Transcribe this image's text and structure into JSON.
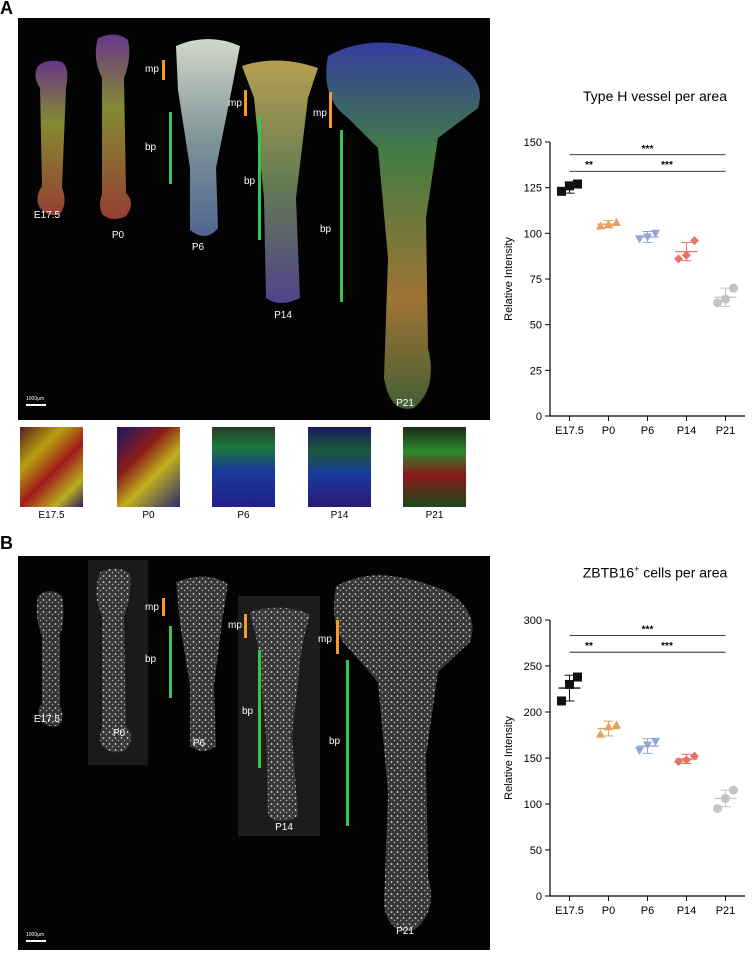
{
  "panels": [
    {
      "letter": "A",
      "stages": [
        "E17.5",
        "P0",
        "P6",
        "P14",
        "P21"
      ],
      "zone_mp": "mp",
      "zone_bp": "bp",
      "scale_label": "1000μm",
      "insets": [
        "E17.5",
        "P0",
        "P6",
        "P14",
        "P21"
      ]
    },
    {
      "letter": "B",
      "stages": [
        "E17.5",
        "P0",
        "P6",
        "P14",
        "P21"
      ],
      "zone_mp": "mp",
      "zone_bp": "bp",
      "scale_label": "1000μm"
    }
  ],
  "chart_titles": {
    "a_main": "Type H vessel per area",
    "b_main": "ZBTB16",
    "b_sup": "+",
    "b_rest": " cells per area"
  },
  "chart_data": [
    {
      "type": "scatter",
      "title": "Type H vessel per area",
      "ylabel": "Relative Intensity",
      "categories": [
        "E17.5",
        "P0",
        "P6",
        "P14",
        "P21"
      ],
      "ylim": [
        0,
        150
      ],
      "yticks": [
        0,
        25,
        50,
        75,
        100,
        125,
        150
      ],
      "colors": [
        "#111111",
        "#e8a060",
        "#8fa7d4",
        "#e8736d",
        "#c4c4c4"
      ],
      "markers": [
        "square",
        "triangle-up",
        "triangle-down",
        "diamond",
        "circle"
      ],
      "points": [
        [
          123,
          126,
          127
        ],
        [
          104,
          105,
          106
        ],
        [
          97,
          98,
          100
        ],
        [
          86,
          88,
          96
        ],
        [
          62,
          64,
          70
        ]
      ],
      "means": [
        125,
        105,
        98,
        90,
        65
      ],
      "errors": [
        3,
        2,
        3,
        5,
        5
      ],
      "significance": [
        {
          "from": 0,
          "to": 1,
          "label": "**",
          "y": 134
        },
        {
          "from": 1,
          "to": 4,
          "label": "***",
          "y": 134
        },
        {
          "from": 0,
          "to": 4,
          "label": "***",
          "y": 143
        }
      ]
    },
    {
      "type": "scatter",
      "title": "ZBTB16+ cells per area",
      "ylabel": "Relative Intensity",
      "categories": [
        "E17.5",
        "P0",
        "P6",
        "P14",
        "P21"
      ],
      "ylim": [
        0,
        300
      ],
      "yticks": [
        0,
        50,
        100,
        150,
        200,
        250,
        300
      ],
      "colors": [
        "#111111",
        "#e8a060",
        "#8fa7d4",
        "#e8736d",
        "#c4c4c4"
      ],
      "markers": [
        "square",
        "triangle-up",
        "triangle-down",
        "diamond",
        "circle"
      ],
      "points": [
        [
          212,
          230,
          238
        ],
        [
          176,
          184,
          186
        ],
        [
          158,
          164,
          168
        ],
        [
          146,
          148,
          152
        ],
        [
          95,
          106,
          115
        ]
      ],
      "means": [
        226,
        182,
        163,
        149,
        106
      ],
      "errors": [
        14,
        8,
        8,
        5,
        9
      ],
      "significance": [
        {
          "from": 0,
          "to": 1,
          "label": "**",
          "y": 265
        },
        {
          "from": 1,
          "to": 4,
          "label": "***",
          "y": 265
        },
        {
          "from": 0,
          "to": 4,
          "label": "***",
          "y": 283
        }
      ]
    }
  ]
}
